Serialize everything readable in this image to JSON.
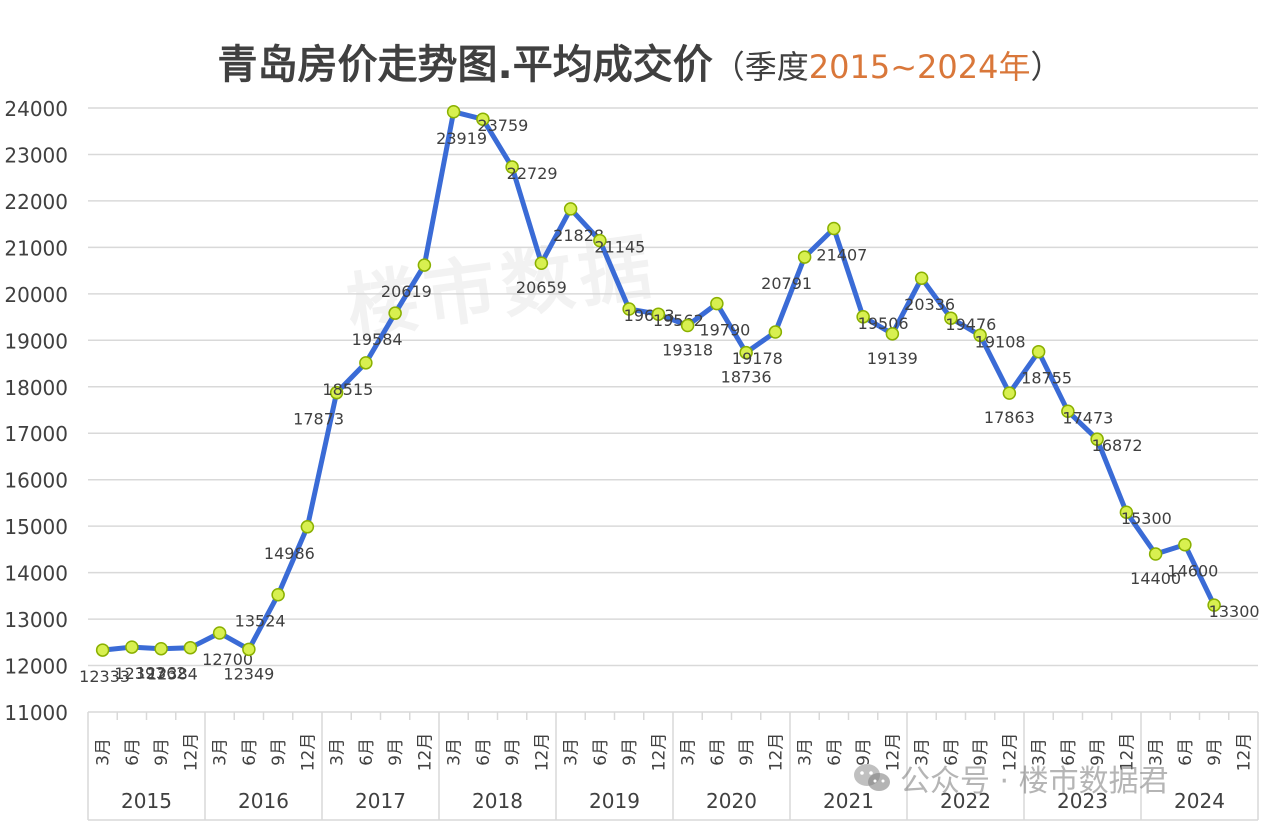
{
  "title": {
    "main": "青岛房价走势图.平均成交价",
    "open": "（季度",
    "range": "2015~2024年",
    "close": "）"
  },
  "watermark": "楼市数据",
  "wechat_mark": {
    "icon": "wechat-icon",
    "text": "公众号 · 楼市数据君"
  },
  "colors": {
    "line": "#3a6bd6",
    "marker_fill": "#d8f050",
    "marker_stroke": "#8ab000",
    "grid": "#d9d9d9",
    "axis_text": "#404040",
    "accent": "#d9773a"
  },
  "chart_data": {
    "type": "line",
    "title": "青岛房价走势图.平均成交价（季度2015~2024年）",
    "xlabel": "",
    "ylabel": "",
    "ylim": [
      11000,
      24000
    ],
    "yticks": [
      11000,
      12000,
      13000,
      14000,
      15000,
      16000,
      17000,
      18000,
      19000,
      20000,
      21000,
      22000,
      23000,
      24000
    ],
    "grid": true,
    "legend": "none",
    "years": [
      "2015",
      "2016",
      "2017",
      "2018",
      "2019",
      "2020",
      "2021",
      "2022",
      "2023",
      "2024"
    ],
    "months": [
      "3月",
      "6月",
      "9月",
      "12月"
    ],
    "series": [
      {
        "values": [
          12333,
          12397,
          12362,
          12384,
          12700,
          12349,
          13524,
          14986,
          17873,
          18515,
          19584,
          20619,
          23919,
          23759,
          22729,
          20659,
          21828,
          21145,
          19673,
          19562,
          19318,
          19790,
          18736,
          19178,
          20791,
          21407,
          19506,
          19139,
          20336,
          19476,
          19108,
          17863,
          18755,
          17473,
          16872,
          15300,
          14400,
          14600,
          13300
        ]
      }
    ]
  }
}
